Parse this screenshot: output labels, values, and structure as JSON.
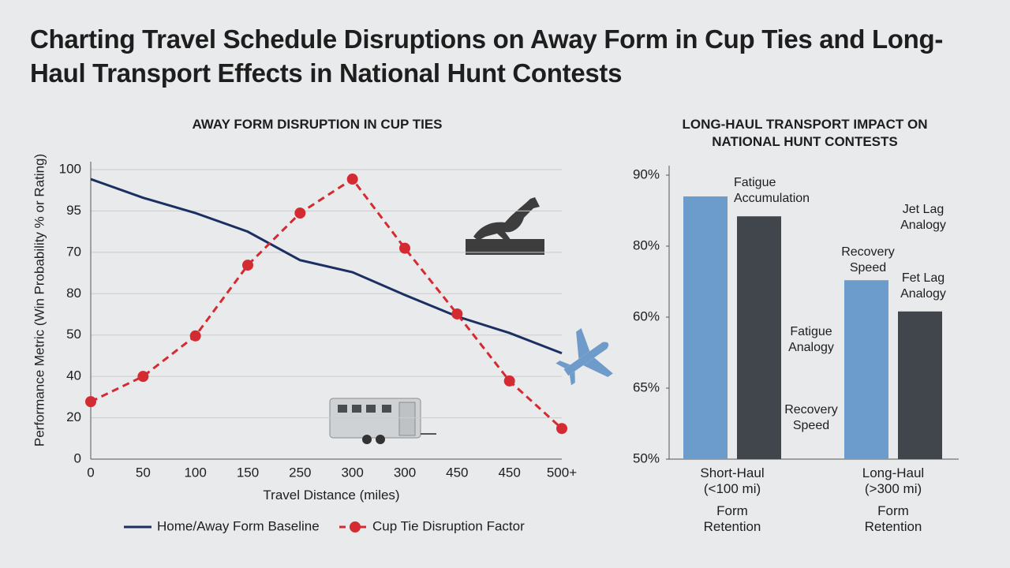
{
  "title": "Charting Travel Schedule Disruptions on Away Form in Cup Ties and Long-Haul Transport Effects in National Hunt Contests",
  "chart_data": [
    {
      "type": "line",
      "title": "AWAY FORM DISRUPTION IN CUP TIES",
      "xlabel": "Travel Distance (miles)",
      "ylabel": "Performance Metric (Win Probability % or Rating)",
      "categories": [
        "0",
        "50",
        "100",
        "150",
        "250",
        "300",
        "300",
        "450",
        "450",
        "500+"
      ],
      "ylim": [
        0,
        7.2
      ],
      "yticks": [
        {
          "value": 0,
          "label": "0"
        },
        {
          "value": 1,
          "label": "20"
        },
        {
          "value": 2,
          "label": "40"
        },
        {
          "value": 3,
          "label": "50"
        },
        {
          "value": 4,
          "label": "80"
        },
        {
          "value": 5,
          "label": "70"
        },
        {
          "value": 6,
          "label": "95"
        },
        {
          "value": 7,
          "label": "100"
        }
      ],
      "grid": true,
      "legend": "bottom",
      "series": [
        {
          "name": "Home/Away Form Baseline",
          "color": "#1b2f63",
          "style": "solid",
          "values": [
            6.77,
            6.32,
            5.95,
            5.5,
            4.81,
            4.52,
            3.97,
            3.45,
            3.05,
            2.56
          ]
        },
        {
          "name": "Cup Tie Disruption Factor",
          "color": "#d42a32",
          "style": "dashed",
          "values": [
            1.39,
            2.0,
            2.98,
            4.69,
            5.95,
            6.77,
            5.1,
            3.51,
            1.89,
            0.74
          ]
        }
      ]
    },
    {
      "type": "bar",
      "title": "LONG-HAUL TRANSPORT IMPACT ON NATIONAL HUNT CONTESTS",
      "categories": [
        "Short-Haul (<100 mi)",
        "Long-Haul (>300 mi)"
      ],
      "category_sublabels": [
        "Form Retention",
        "Form Retention"
      ],
      "ylim": [
        0,
        4.1
      ],
      "yticks": [
        {
          "value": 0,
          "label": "50%"
        },
        {
          "value": 1,
          "label": "65%"
        },
        {
          "value": 2,
          "label": "60%"
        },
        {
          "value": 3,
          "label": "80%"
        },
        {
          "value": 4,
          "label": "90%"
        }
      ],
      "series": [
        {
          "color": "#6c9ccb",
          "values": [
            3.7,
            2.52
          ]
        },
        {
          "color": "#41464c",
          "values": [
            3.42,
            2.08
          ]
        }
      ],
      "annotations": [
        "Fatigue Accumulation",
        "Jet Lag Analogy",
        "Recovery Speed",
        "Fet Lag Analogy",
        "Fatigue Analogy",
        "Recovery Speed"
      ]
    }
  ]
}
